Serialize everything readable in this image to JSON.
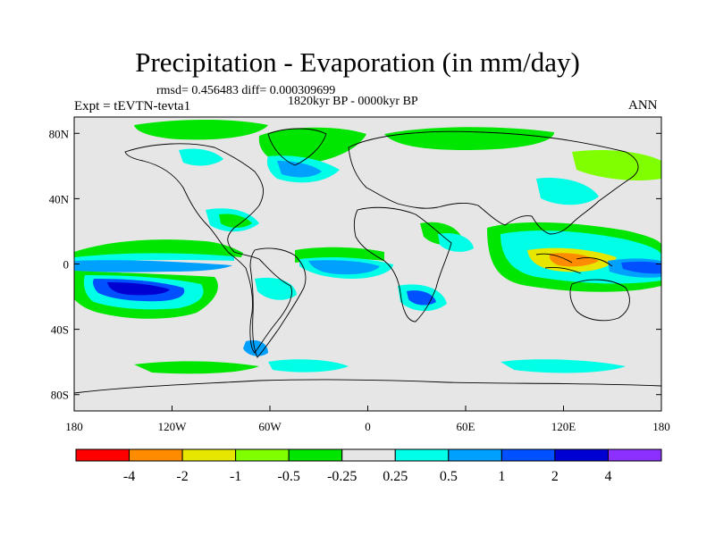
{
  "title": "Precipitation - Evaporation (in mm/day)",
  "stats": "rmsd= 0.456483 diff= 0.000309699",
  "subtitle": "1820kyr BP - 0000kyr BP",
  "experiment": "Expt = tEVTN-tevta1",
  "season": "ANN",
  "axes": {
    "lon_ticks": [
      "180",
      "120W",
      "60W",
      "0",
      "60E",
      "120E",
      "180"
    ],
    "lat_ticks": [
      "80N",
      "40N",
      "0",
      "40S",
      "80S"
    ]
  },
  "colorbar": {
    "labels": [
      "-4",
      "-2",
      "-1",
      "-0.5",
      "-0.25",
      "0.25",
      "0.5",
      "1",
      "2",
      "4"
    ],
    "colors": [
      "#ff0000",
      "#ff8c00",
      "#e6e600",
      "#80ff00",
      "#00e600",
      "#e6e6e6",
      "#00ffe6",
      "#00a0ff",
      "#0050ff",
      "#0000d2",
      "#8c30ff"
    ]
  },
  "colors": {
    "background_land_ocean": "#e6e6e6",
    "coastline": "#000000"
  }
}
